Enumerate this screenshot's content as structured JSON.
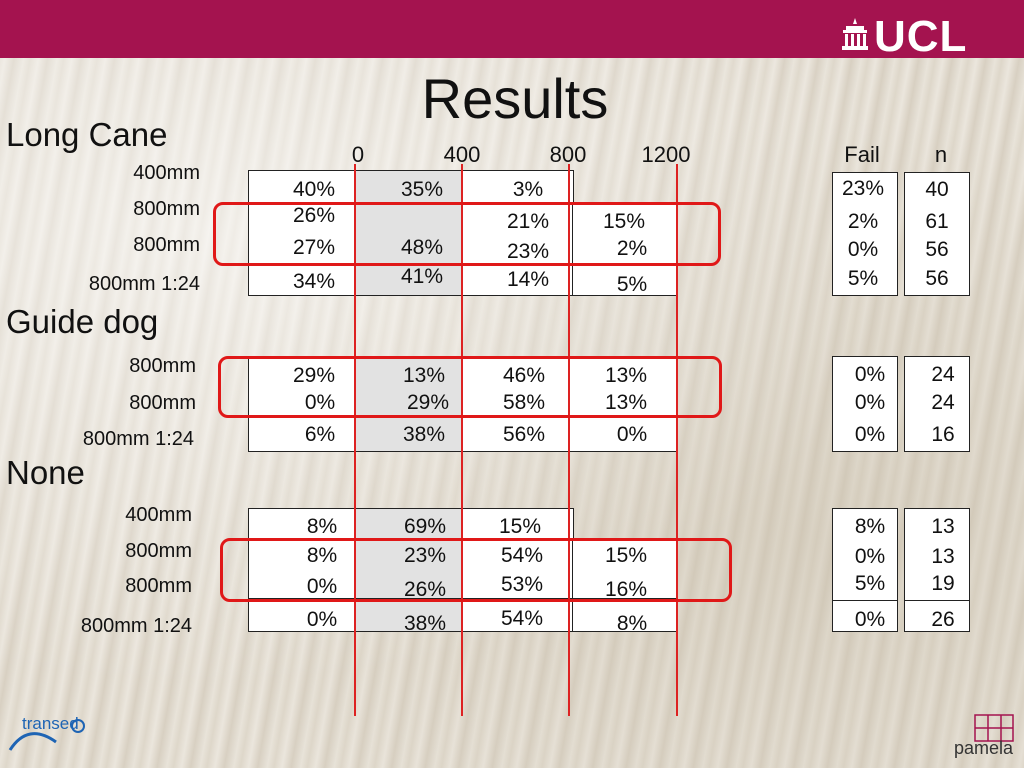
{
  "logo": {
    "text": "UCL"
  },
  "title": "Results",
  "axis": {
    "ticks": [
      "0",
      "400",
      "800",
      "1200"
    ]
  },
  "headers": {
    "fail": "Fail",
    "n": "n"
  },
  "sections": [
    {
      "label": "Long Cane",
      "rows": [
        {
          "label": "400mm",
          "cells": [
            "40%",
            "35%",
            "3%",
            ""
          ],
          "fail": "23%",
          "n": "40"
        },
        {
          "label": "800mm",
          "cells": [
            "26%",
            "",
            "21%",
            "15%"
          ],
          "fail": "2%",
          "n": "61"
        },
        {
          "label": "800mm",
          "cells": [
            "27%",
            "48%",
            "23%",
            "2%"
          ],
          "fail": "0%",
          "n": "56"
        },
        {
          "label": "800mm 1:24",
          "cells": [
            "34%",
            "41%",
            "14%",
            "5%"
          ],
          "fail": "5%",
          "n": "56"
        }
      ]
    },
    {
      "label": "Guide dog",
      "rows": [
        {
          "label": "800mm",
          "cells": [
            "29%",
            "13%",
            "46%",
            "13%"
          ],
          "fail": "0%",
          "n": "24"
        },
        {
          "label": "800mm",
          "cells": [
            "0%",
            "29%",
            "58%",
            "13%"
          ],
          "fail": "0%",
          "n": "24"
        },
        {
          "label": "800mm 1:24",
          "cells": [
            "6%",
            "38%",
            "56%",
            "0%"
          ],
          "fail": "0%",
          "n": "16"
        }
      ]
    },
    {
      "label": "None",
      "rows": [
        {
          "label": "400mm",
          "cells": [
            "8%",
            "69%",
            "15%",
            ""
          ],
          "fail": "8%",
          "n": "13"
        },
        {
          "label": "800mm",
          "cells": [
            "8%",
            "23%",
            "54%",
            "15%"
          ],
          "fail": "0%",
          "n": "13"
        },
        {
          "label": "800mm",
          "cells": [
            "0%",
            "26%",
            "53%",
            "16%"
          ],
          "fail": "5%",
          "n": "19"
        },
        {
          "label": "800mm 1:24",
          "cells": [
            "0%",
            "38%",
            "54%",
            "8%"
          ],
          "fail": "0%",
          "n": "26"
        }
      ]
    }
  ],
  "footer": {
    "left_logo": "transed",
    "right_logo": "pamela"
  },
  "colors": {
    "topbar": "#a4134f",
    "highlight": "#e01818"
  }
}
